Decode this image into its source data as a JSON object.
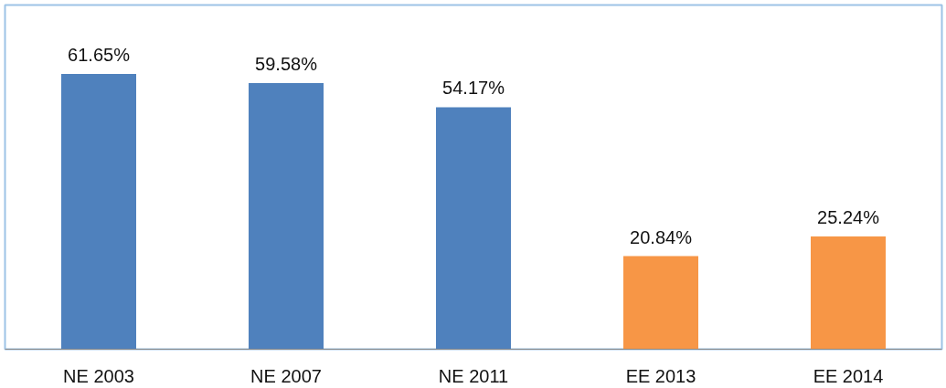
{
  "chart_data": {
    "type": "bar",
    "categories": [
      "NE 2003",
      "NE 2007",
      "NE 2011",
      "EE 2013",
      "EE 2014"
    ],
    "values": [
      61.65,
      59.58,
      54.17,
      20.84,
      25.24
    ],
    "colors": [
      "#4f81bd",
      "#4f81bd",
      "#4f81bd",
      "#f79646",
      "#f79646"
    ],
    "value_labels": [
      "61.65%",
      "59.58%",
      "54.17%",
      "20.84%",
      "25.24%"
    ],
    "grid": false
  }
}
